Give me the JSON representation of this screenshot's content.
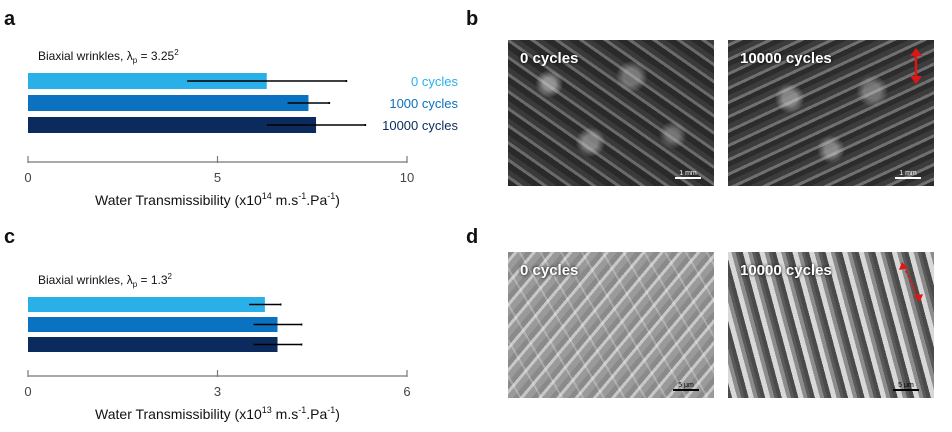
{
  "panels": {
    "a": "a",
    "b": "b",
    "c": "c",
    "d": "d"
  },
  "chart_data": [
    {
      "type": "bar",
      "orientation": "horizontal",
      "annotation_main": "Biaxial wrinkles, λ",
      "annotation_sub": "p",
      "annotation_value": " =  3.25",
      "annotation_sup": "2",
      "categories": [
        "0 cycles",
        "1000 cycles",
        "10000 cycles"
      ],
      "values": [
        6.3,
        7.4,
        7.6
      ],
      "errors": [
        2.1,
        0.55,
        1.3
      ],
      "colors": [
        "#2ab0e8",
        "#0a72c0",
        "#0b2a5e"
      ],
      "label_colors": [
        "#2ab0e8",
        "#0a72c0",
        "#0b2a5e"
      ],
      "xlim": [
        0,
        10
      ],
      "xticks": [
        "0",
        "5",
        "10"
      ],
      "xlabel_prefix": "Water Transmissibility (x10",
      "xlabel_exp": "14",
      "xlabel_mid": " m.s",
      "xlabel_exp2": "-1",
      "xlabel_mid2": ".Pa",
      "xlabel_exp3": "-1",
      "xlabel_suffix": ")"
    },
    {
      "type": "bar",
      "orientation": "horizontal",
      "annotation_main": "Biaxial wrinkles, λ",
      "annotation_sub": "p",
      "annotation_value": " = 1.3",
      "annotation_sup": "2",
      "categories": [
        "",
        "",
        ""
      ],
      "values": [
        3.75,
        3.95,
        3.95
      ],
      "errors": [
        0.25,
        0.38,
        0.38
      ],
      "colors": [
        "#2ab0e8",
        "#0a72c0",
        "#0b2a5e"
      ],
      "xlim": [
        0,
        6
      ],
      "xticks": [
        "0",
        "3",
        "6"
      ],
      "xlabel_prefix": "Water Transmissibility (x10",
      "xlabel_exp": "13",
      "xlabel_mid": " m.s",
      "xlabel_exp2": "-1",
      "xlabel_mid2": ".Pa",
      "xlabel_exp3": "-1",
      "xlabel_suffix": ")"
    }
  ],
  "images": {
    "b_left_label": "0 cycles",
    "b_right_label": "10000 cycles",
    "b_scale": "1 mm",
    "d_left_label": "0 cycles",
    "d_right_label": "10000 cycles",
    "d_scale": "5 μm"
  }
}
